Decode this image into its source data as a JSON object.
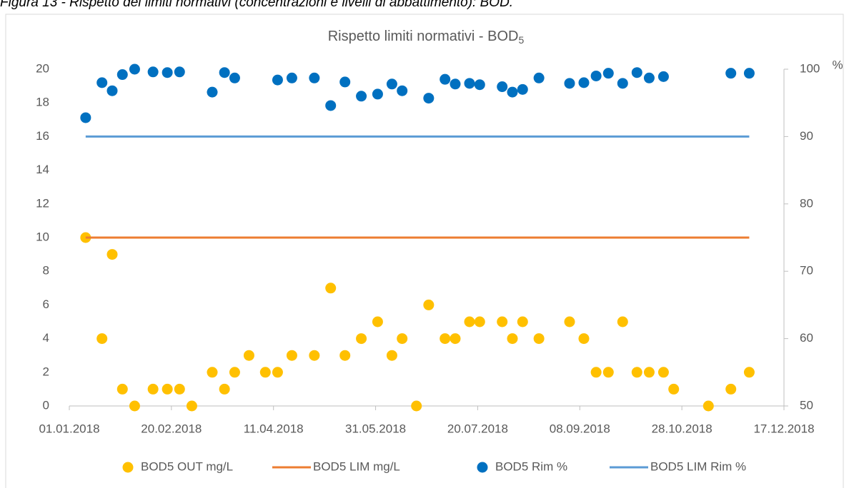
{
  "caption": "Figura 13 - Rispetto dei limiti normativi (concentrazioni e livelli di abbattimento): BOD.",
  "chart_data": {
    "type": "scatter",
    "title": "Rispetto limiti normativi - BOD",
    "title_subscript": "5",
    "y2label": "%",
    "x": [
      "2018-01-09",
      "2018-01-17",
      "2018-01-22",
      "2018-01-27",
      "2018-02-02",
      "2018-02-11",
      "2018-02-18",
      "2018-02-24",
      "2018-03-02",
      "2018-03-12",
      "2018-03-18",
      "2018-03-23",
      "2018-03-30",
      "2018-04-07",
      "2018-04-13",
      "2018-04-20",
      "2018-05-01",
      "2018-05-09",
      "2018-05-16",
      "2018-05-24",
      "2018-06-01",
      "2018-06-08",
      "2018-06-13",
      "2018-06-20",
      "2018-06-26",
      "2018-07-04",
      "2018-07-09",
      "2018-07-16",
      "2018-07-21",
      "2018-08-01",
      "2018-08-06",
      "2018-08-11",
      "2018-08-19",
      "2018-09-03",
      "2018-09-10",
      "2018-09-16",
      "2018-09-22",
      "2018-09-29",
      "2018-10-06",
      "2018-10-12",
      "2018-10-19",
      "2018-10-24",
      "2018-11-10",
      "2018-11-21",
      "2018-11-30"
    ],
    "xlim": [
      "2018-01-01",
      "2018-12-17"
    ],
    "xticks": [
      {
        "value": "2018-01-01",
        "label": "01.01.2018"
      },
      {
        "value": "2018-02-20",
        "label": "20.02.2018"
      },
      {
        "value": "2018-04-11",
        "label": "11.04.2018"
      },
      {
        "value": "2018-05-31",
        "label": "31.05.2018"
      },
      {
        "value": "2018-07-20",
        "label": "20.07.2018"
      },
      {
        "value": "2018-09-08",
        "label": "08.09.2018"
      },
      {
        "value": "2018-10-28",
        "label": "28.10.2018"
      },
      {
        "value": "2018-12-17",
        "label": "17.12.2018"
      }
    ],
    "ylim": [
      0,
      20
    ],
    "yticks": [
      0,
      2,
      4,
      6,
      8,
      10,
      12,
      14,
      16,
      18,
      20
    ],
    "y2lim": [
      50,
      100
    ],
    "y2ticks": [
      50,
      60,
      70,
      80,
      90,
      100
    ],
    "series": [
      {
        "name": "BOD5 OUT mg/L",
        "type": "scatter",
        "color": "#FFC000",
        "values": [
          10,
          4,
          9,
          1,
          0,
          1,
          1,
          1,
          0,
          2,
          1,
          2,
          3,
          2,
          2,
          3,
          3,
          7,
          3,
          4,
          5,
          3,
          4,
          0,
          6,
          4,
          4,
          5,
          5,
          5,
          4,
          5,
          4,
          5,
          4,
          2,
          2,
          5,
          2,
          2,
          2,
          1,
          0,
          1,
          2
        ]
      },
      {
        "name": "BOD5 LIM mg/L",
        "type": "line",
        "color": "#ED7D31",
        "values": [
          10,
          10,
          10,
          10,
          10,
          10,
          10,
          10,
          10,
          10,
          10,
          10,
          10,
          10,
          10,
          10,
          10,
          10,
          10,
          10,
          10,
          10,
          10,
          10,
          10,
          10,
          10,
          10,
          10,
          10,
          10,
          10,
          10,
          10,
          10,
          10,
          10,
          10,
          10,
          10,
          10,
          10,
          10,
          10,
          10
        ]
      },
      {
        "name": "BOD5 Rim %",
        "type": "scatter",
        "axis": "y2",
        "color": "#0070C0",
        "values": [
          92.8,
          98.0,
          96.8,
          99.2,
          100,
          99.6,
          99.5,
          99.6,
          null,
          96.6,
          99.5,
          98.7,
          null,
          null,
          98.4,
          98.7,
          98.7,
          94.6,
          98.1,
          96.0,
          96.3,
          97.8,
          96.8,
          null,
          95.7,
          98.5,
          97.8,
          97.9,
          97.7,
          97.4,
          96.6,
          97.0,
          98.7,
          97.9,
          98.0,
          99.0,
          99.4,
          97.9,
          99.5,
          98.7,
          98.9,
          null,
          null,
          99.4,
          99.4
        ]
      },
      {
        "name": "BOD5 LIM Rim %",
        "type": "line",
        "axis": "y2",
        "color": "#5B9BD5",
        "values": [
          90,
          90,
          90,
          90,
          90,
          90,
          90,
          90,
          90,
          90,
          90,
          90,
          90,
          90,
          90,
          90,
          90,
          90,
          90,
          90,
          90,
          90,
          90,
          90,
          90,
          90,
          90,
          90,
          90,
          90,
          90,
          90,
          90,
          90,
          90,
          90,
          90,
          90,
          90,
          90,
          90,
          90,
          90,
          90,
          90
        ]
      }
    ]
  }
}
